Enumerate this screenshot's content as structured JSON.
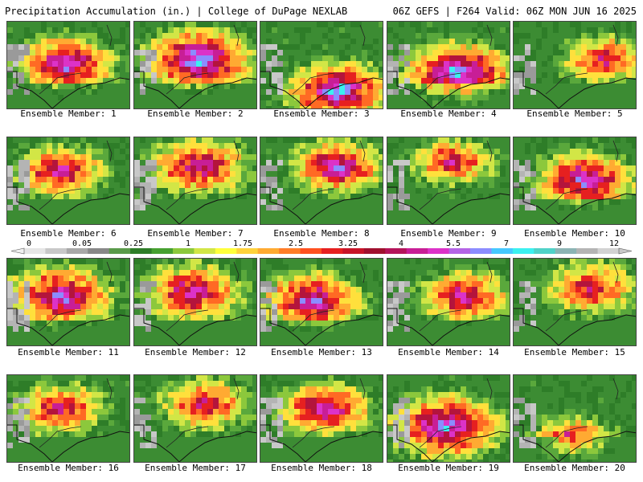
{
  "header": {
    "left": "Precipitation Accumulation (in.) | College of DuPage NEXLAB",
    "right": "06Z GEFS | F264 Valid: 06Z MON JUN 16 2025"
  },
  "caption_prefix": "Ensemble Member: ",
  "members": [
    {
      "number": "1",
      "label": "Ensemble Member: 1"
    },
    {
      "number": "2",
      "label": "Ensemble Member: 2"
    },
    {
      "number": "3",
      "label": "Ensemble Member: 3"
    },
    {
      "number": "4",
      "label": "Ensemble Member: 4"
    },
    {
      "number": "5",
      "label": "Ensemble Member: 5"
    },
    {
      "number": "6",
      "label": "Ensemble Member: 6"
    },
    {
      "number": "7",
      "label": "Ensemble Member: 7"
    },
    {
      "number": "8",
      "label": "Ensemble Member: 8"
    },
    {
      "number": "9",
      "label": "Ensemble Member: 9"
    },
    {
      "number": "10",
      "label": "Ensemble Member: 10"
    },
    {
      "number": "11",
      "label": "Ensemble Member: 11"
    },
    {
      "number": "12",
      "label": "Ensemble Member: 12"
    },
    {
      "number": "13",
      "label": "Ensemble Member: 13"
    },
    {
      "number": "14",
      "label": "Ensemble Member: 14"
    },
    {
      "number": "15",
      "label": "Ensemble Member: 15"
    },
    {
      "number": "16",
      "label": "Ensemble Member: 16"
    },
    {
      "number": "17",
      "label": "Ensemble Member: 17"
    },
    {
      "number": "18",
      "label": "Ensemble Member: 18"
    },
    {
      "number": "19",
      "label": "Ensemble Member: 19"
    },
    {
      "number": "20",
      "label": "Ensemble Member: 20"
    }
  ],
  "colorbar": {
    "tick_labels": [
      "0",
      "0.05",
      "0.25",
      "1",
      "1.75",
      "2.5",
      "3.25",
      "4",
      "5.5",
      "7",
      "9",
      "12"
    ],
    "colors": [
      "#e6e6e6",
      "#c8c8c8",
      "#a8a8a8",
      "#888888",
      "#5a9a4a",
      "#2e7d28",
      "#46a030",
      "#8cc83c",
      "#d2e646",
      "#ffff3c",
      "#ffd23c",
      "#ffaa32",
      "#ff7d28",
      "#ff5020",
      "#e62020",
      "#c81428",
      "#a0102e",
      "#b4145a",
      "#c81e96",
      "#dc32c8",
      "#b464e6",
      "#8c8cff",
      "#46c8ff",
      "#3cf0f0",
      "#50d2c8",
      "#8cb4b4",
      "#b4b4b4",
      "#d2d2d2"
    ]
  }
}
